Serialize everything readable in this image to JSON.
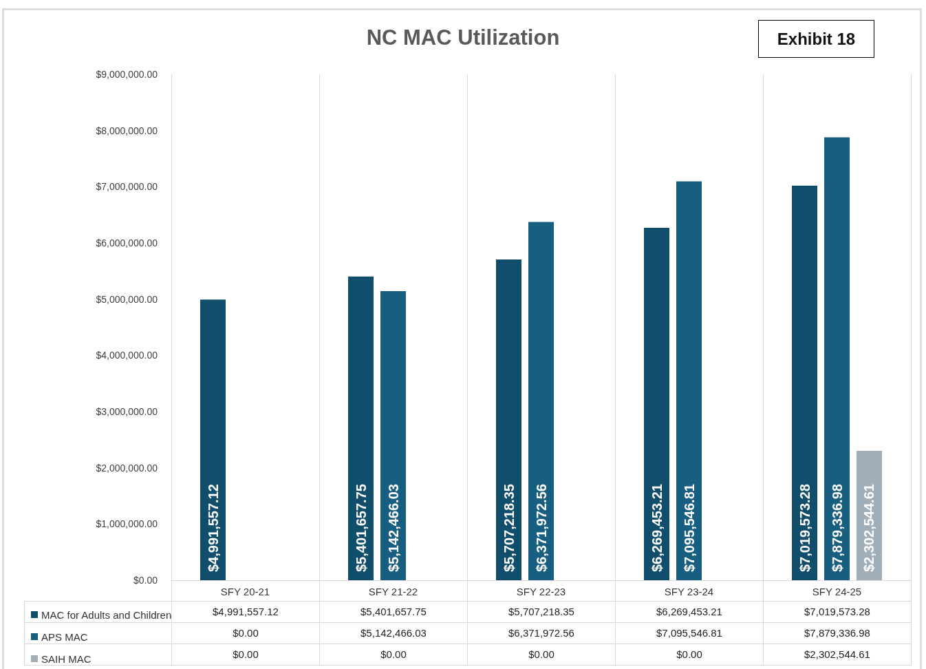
{
  "chart_data": {
    "type": "bar",
    "title": "NC MAC Utilization",
    "annotations": [
      "Exhibit 18"
    ],
    "categories": [
      "SFY 20-21",
      "SFY 21-22",
      "SFY 22-23",
      "SFY 23-24",
      "SFY 24-25"
    ],
    "series": [
      {
        "name": "MAC for Adults and Children",
        "color": "#104e6b",
        "values": [
          4991557.12,
          5401657.75,
          5707218.35,
          6269453.21,
          7019573.28
        ],
        "value_labels": [
          "$4,991,557.12",
          "$5,401,657.75",
          "$5,707,218.35",
          "$6,269,453.21",
          "$7,019,573.28"
        ]
      },
      {
        "name": "APS MAC",
        "color": "#175e80",
        "values": [
          0,
          5142466.03,
          6371972.56,
          7095546.81,
          7879336.98
        ],
        "value_labels": [
          "$0.00",
          "$5,142,466.03",
          "$6,371,972.56",
          "$7,095,546.81",
          "$7,879,336.98"
        ]
      },
      {
        "name": "SAIH MAC",
        "color": "#a0aeb9",
        "values": [
          0,
          0,
          0,
          0,
          2302544.61
        ],
        "value_labels": [
          "$0.00",
          "$0.00",
          "$0.00",
          "$0.00",
          "$2,302,544.61"
        ]
      }
    ],
    "ylim": [
      0,
      9000000
    ],
    "yticks": [
      {
        "value": 0,
        "label": "$0.00"
      },
      {
        "value": 1000000,
        "label": "$1,000,000.00"
      },
      {
        "value": 2000000,
        "label": "$2,000,000.00"
      },
      {
        "value": 3000000,
        "label": "$3,000,000.00"
      },
      {
        "value": 4000000,
        "label": "$4,000,000.00"
      },
      {
        "value": 5000000,
        "label": "$5,000,000.00"
      },
      {
        "value": 6000000,
        "label": "$6,000,000.00"
      },
      {
        "value": 7000000,
        "label": "$7,000,000.00"
      },
      {
        "value": 8000000,
        "label": "$8,000,000.00"
      },
      {
        "value": 9000000,
        "label": "$9,000,000.00"
      }
    ],
    "grid": "x",
    "legend": "bottom left"
  }
}
